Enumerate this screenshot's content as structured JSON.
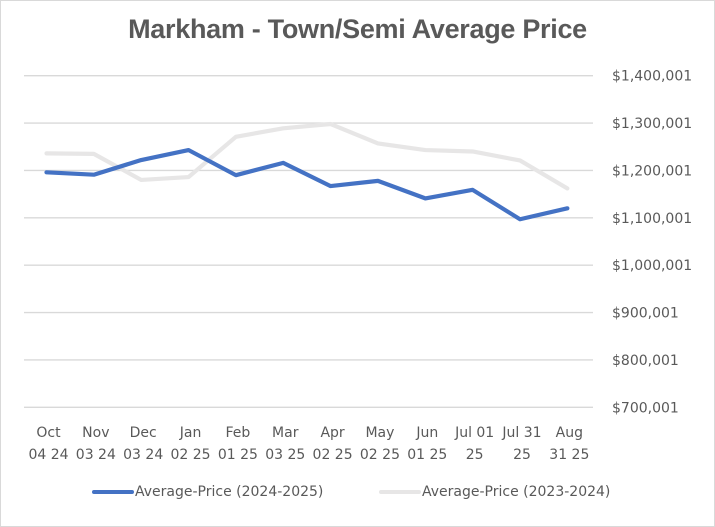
{
  "chart_data": {
    "type": "line",
    "title": "Markham - Town/Semi Average Price",
    "xlabel": "",
    "ylabel": "",
    "y_axis_position": "right",
    "ylim": [
      700001,
      1400001
    ],
    "yticks": [
      1400001,
      1300001,
      1200001,
      1100001,
      1000001,
      900001,
      800001,
      700001
    ],
    "ytick_labels": [
      "$1,400,001",
      "$1,300,001",
      "$1,200,001",
      "$1,100,001",
      "$1,000,001",
      "$900,001",
      "$800,001",
      "$700,001"
    ],
    "grid": true,
    "legend_position": "bottom",
    "categories": [
      [
        "Oct",
        "04 24"
      ],
      [
        "Nov",
        "03 24"
      ],
      [
        "Dec",
        "03 24"
      ],
      [
        "Jan",
        "02 25"
      ],
      [
        "Feb",
        "01 25"
      ],
      [
        "Mar",
        "03 25"
      ],
      [
        "Apr",
        "02 25"
      ],
      [
        "May",
        "02 25"
      ],
      [
        "Jun",
        "01 25"
      ],
      [
        "Jul 01",
        "25"
      ],
      [
        "Jul 31",
        "25"
      ],
      [
        "Aug",
        "31 25"
      ]
    ],
    "series": [
      {
        "name": "Average-Price (2024-2025)",
        "color": "#4472c4",
        "values": [
          1196000,
          1191000,
          1222000,
          1243000,
          1190000,
          1216000,
          1167000,
          1178000,
          1141000,
          1159000,
          1097000,
          1120000
        ]
      },
      {
        "name": "Average-Price (2023-2024)",
        "color": "#e7e6e6",
        "values": [
          1236000,
          1235000,
          1180000,
          1186000,
          1271000,
          1289000,
          1298000,
          1257000,
          1243000,
          1240000,
          1221000,
          1162000
        ]
      }
    ]
  },
  "colors": {
    "gridline": "#d9d9d9",
    "text": "#595959"
  }
}
